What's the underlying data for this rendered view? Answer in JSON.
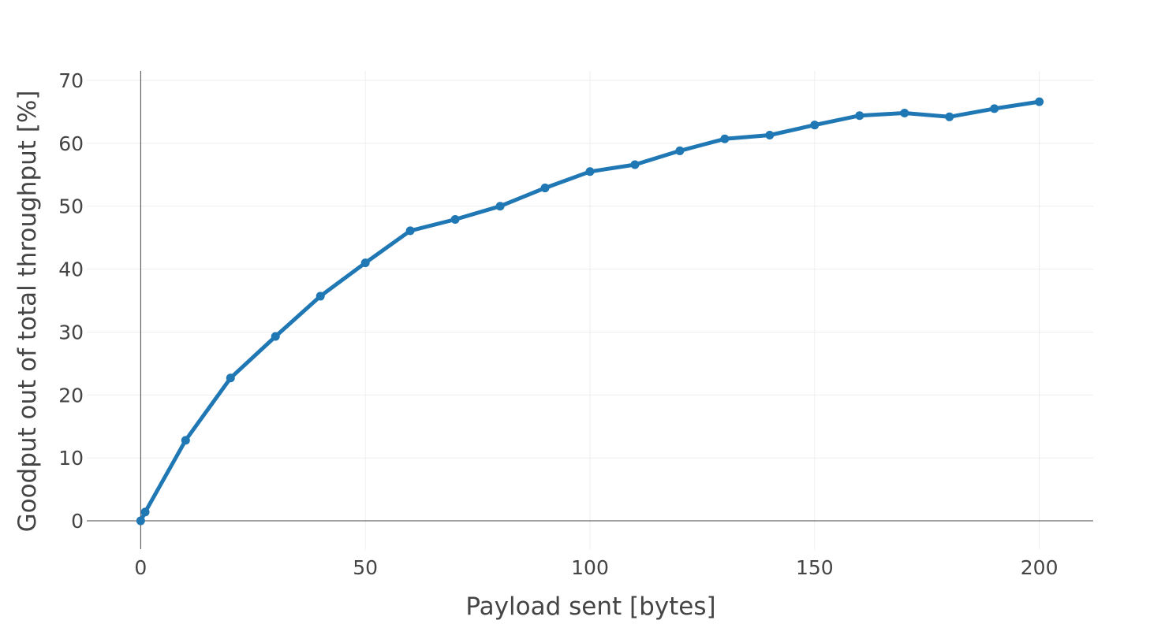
{
  "chart_data": {
    "type": "line",
    "title": "",
    "xlabel": "Payload sent [bytes]",
    "ylabel": "Goodput out of total throughput [%]",
    "xlim": [
      -12,
      212
    ],
    "ylim": [
      -4.5,
      71.5
    ],
    "x_ticks": [
      0,
      50,
      100,
      150,
      200
    ],
    "y_ticks": [
      0,
      10,
      20,
      30,
      40,
      50,
      60,
      70
    ],
    "grid": true,
    "legend": "none",
    "colors": {
      "line": "#1f77b4",
      "grid": "#eeeeee",
      "zeroline": "#444444",
      "text": "#444444"
    },
    "series": [
      {
        "x": [
          0,
          1,
          10,
          20,
          30,
          40,
          50,
          60,
          70,
          80,
          90,
          100,
          110,
          120,
          130,
          140,
          150,
          160,
          170,
          180,
          190,
          200
        ],
        "y": [
          0,
          1.4,
          12.8,
          22.7,
          29.3,
          35.7,
          41.0,
          46.1,
          47.9,
          50.0,
          52.9,
          55.5,
          56.6,
          58.8,
          60.7,
          61.3,
          62.9,
          64.4,
          64.8,
          64.2,
          65.5,
          66.6
        ]
      }
    ]
  }
}
